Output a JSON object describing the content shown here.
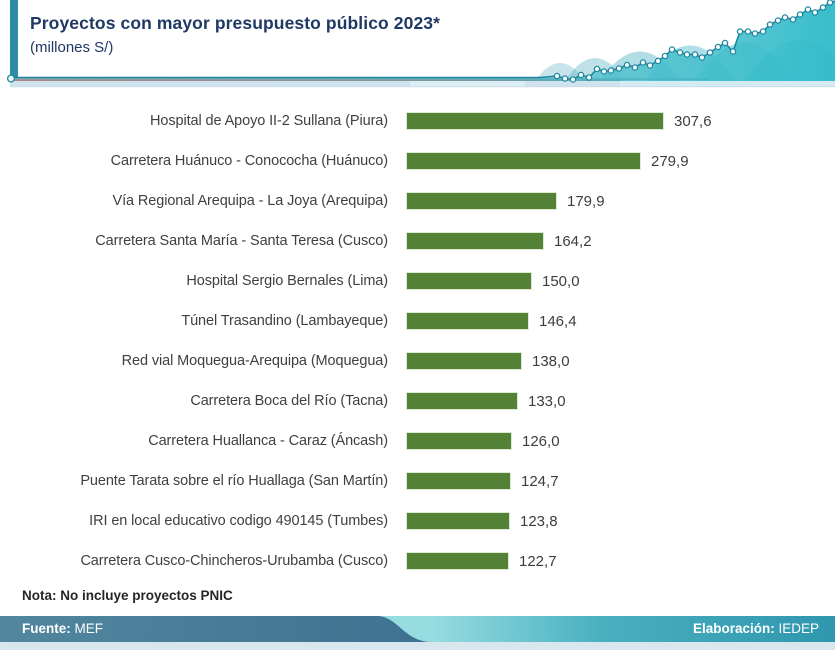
{
  "header": {
    "title": "Proyectos con mayor presupuesto público 2023*",
    "subtitle": "(millones S/)",
    "accent_color": "#2b8da3"
  },
  "chart_data": {
    "type": "bar",
    "orientation": "horizontal",
    "title": "Proyectos con mayor presupuesto público 2023*",
    "unit": "millones S/",
    "categories": [
      "Hospital de Apoyo II-2 Sullana (Piura)",
      "Carretera Huánuco - Conococha (Huánuco)",
      "Vía Regional Arequipa - La Joya (Arequipa)",
      "Carretera Santa María - Santa Teresa (Cusco)",
      "Hospital Sergio Bernales (Lima)",
      "Túnel Trasandino (Lambayeque)",
      "Red vial Moquegua-Arequipa (Moquegua)",
      "Carretera Boca del Río (Tacna)",
      "Carretera Huallanca - Caraz (Áncash)",
      "Puente Tarata sobre el río Huallaga (San Martín)",
      "IRI en local educativo codigo 490145 (Tumbes)",
      "Carretera Cusco-Chincheros-Urubamba (Cusco)"
    ],
    "values": [
      307.6,
      279.9,
      179.9,
      164.2,
      150.0,
      146.4,
      138.0,
      133.0,
      126.0,
      124.7,
      123.8,
      122.7
    ],
    "value_labels": [
      "307,6",
      "279,9",
      "179,9",
      "164,2",
      "150,0",
      "146,4",
      "138,0",
      "133,0",
      "126,0",
      "124,7",
      "123,8",
      "122,7"
    ],
    "xmax": 307.6,
    "bar_color": "#538135",
    "grid": false,
    "legend": false
  },
  "note": "Nota: No incluye proyectos PNIC",
  "footer": {
    "source_label": "Fuente:",
    "source_value": "MEF",
    "elaboration_label": "Elaboración:",
    "elaboration_value": "IEDEP"
  }
}
